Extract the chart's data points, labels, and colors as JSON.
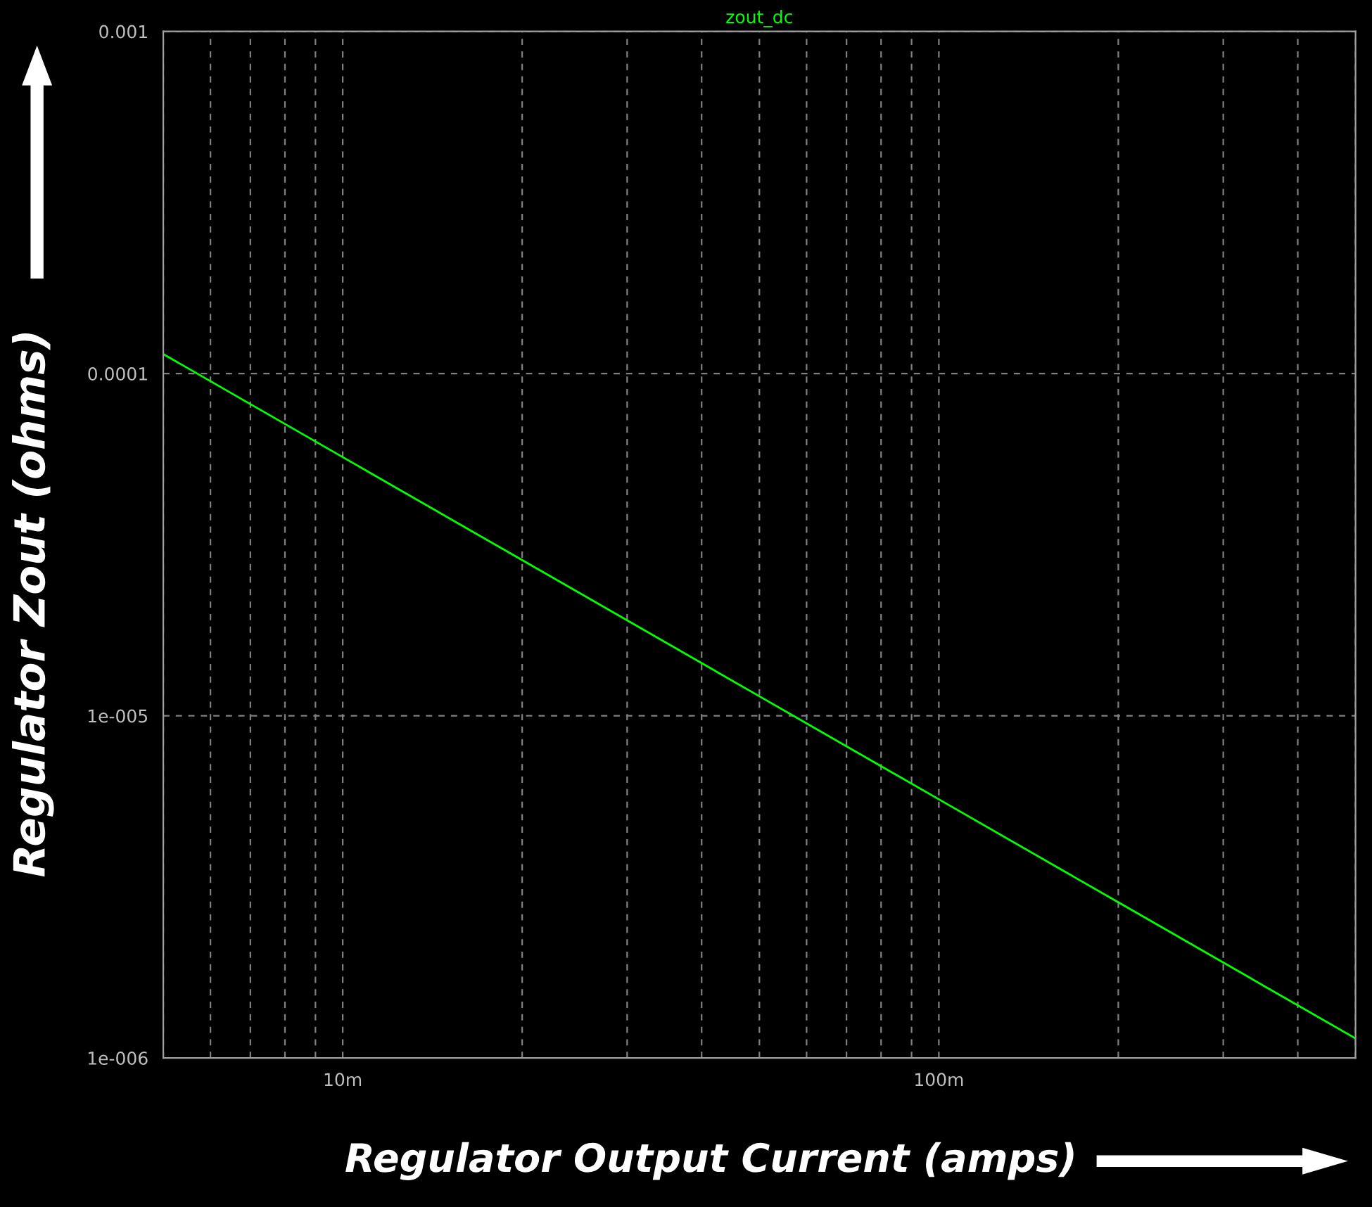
{
  "chart_data": {
    "type": "line",
    "xlabel": "Regulator Output Current (amps)",
    "ylabel": "Regulator Zout (ohms)",
    "log": "xy",
    "grid": true,
    "xlim": [
      5,
      500
    ],
    "ylim": [
      1e-06,
      0.001
    ],
    "xticks": [
      {
        "value": 5,
        "label": null
      },
      {
        "value": 6,
        "label": null
      },
      {
        "value": 7,
        "label": null
      },
      {
        "value": 8,
        "label": null
      },
      {
        "value": 9,
        "label": null
      },
      {
        "value": 10,
        "label": "10m"
      },
      {
        "value": 20,
        "label": null
      },
      {
        "value": 30,
        "label": null
      },
      {
        "value": 40,
        "label": null
      },
      {
        "value": 50,
        "label": null
      },
      {
        "value": 60,
        "label": null
      },
      {
        "value": 70,
        "label": null
      },
      {
        "value": 80,
        "label": null
      },
      {
        "value": 90,
        "label": null
      },
      {
        "value": 100,
        "label": "100m"
      },
      {
        "value": 200,
        "label": null
      },
      {
        "value": 300,
        "label": null
      },
      {
        "value": 400,
        "label": null
      },
      {
        "value": 500,
        "label": null
      }
    ],
    "yticks": [
      {
        "value": 1e-06,
        "label": "1e-006"
      },
      {
        "value": 1e-05,
        "label": "1e-005"
      },
      {
        "value": 0.0001,
        "label": "0.0001"
      },
      {
        "value": 0.001,
        "label": "0.001"
      }
    ],
    "series": [
      {
        "name": "zout_dc",
        "color": "#00ff00",
        "x": [
          5,
          10,
          20,
          50,
          100,
          200,
          500
        ],
        "values": [
          0.000114,
          5.7e-05,
          2.85e-05,
          1.14e-05,
          5.7e-06,
          2.85e-06,
          1.14e-06
        ]
      }
    ]
  }
}
